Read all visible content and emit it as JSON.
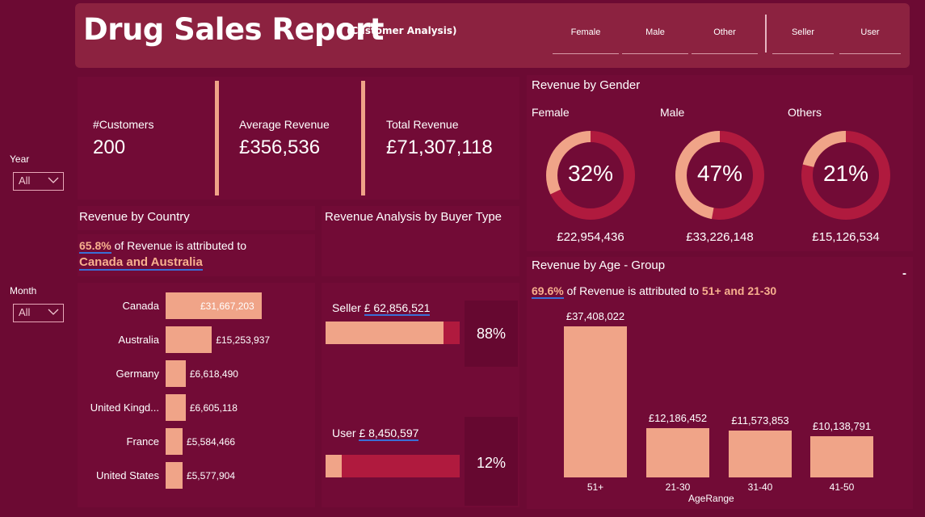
{
  "header": {
    "title": "Drug Sales Report",
    "subtitle": "(Customer Analysis)",
    "gender_buttons": [
      "Female",
      "Male",
      "Other"
    ],
    "buyer_buttons": [
      "Seller",
      "User"
    ]
  },
  "slicers": {
    "year": {
      "label": "Year",
      "value": "All"
    },
    "month": {
      "label": "Month",
      "value": "All"
    }
  },
  "kpis": [
    {
      "label": "#Customers",
      "value": "200"
    },
    {
      "label": "Average Revenue",
      "value": "£356,536"
    },
    {
      "label": "Total Revenue",
      "value": "£71,307,118"
    }
  ],
  "country": {
    "title": "Revenue by Country",
    "pct": "65.8%",
    "text": " of Revenue is attributed to",
    "highlight": "Canada and Australia",
    "chart_data": {
      "type": "bar",
      "orientation": "horizontal",
      "categories": [
        "Canada",
        "Australia",
        "Germany",
        "United Kingd...",
        "France",
        "United States"
      ],
      "values": [
        31667203,
        15253937,
        6618490,
        6605118,
        5584466,
        5577904
      ],
      "labels": [
        "£31,667,203",
        "£15,253,937",
        "£6,618,490",
        "£6,605,118",
        "£5,584,466",
        "£5,577,904"
      ]
    }
  },
  "buyer": {
    "title": "Revenue Analysis by Buyer Type",
    "items": [
      {
        "label": "Seller",
        "amount": "£ 62,856,521",
        "share": 0.88,
        "pct": "88%"
      },
      {
        "label": "User",
        "amount": "£ 8,450,597",
        "share": 0.12,
        "pct": "12%"
      }
    ]
  },
  "gender": {
    "title": "Revenue by Gender",
    "items": [
      {
        "label": "Female",
        "pct_text": "32%",
        "share": 0.32,
        "amount": "£22,954,436"
      },
      {
        "label": "Male",
        "pct_text": "47%",
        "share": 0.47,
        "amount": "£33,226,148"
      },
      {
        "label": "Others",
        "pct_text": "21%",
        "share": 0.21,
        "amount": "£15,126,534"
      }
    ]
  },
  "age": {
    "title": "Revenue by Age - Group",
    "pct": "69.6%",
    "text": " of Revenue is attributed to ",
    "highlight": "51+ and 21-30",
    "dash": "-",
    "chart_data": {
      "type": "bar",
      "xlabel": "AgeRange",
      "categories": [
        "51+",
        "21-30",
        "31-40",
        "41-50"
      ],
      "values": [
        37408022,
        12186452,
        11573853,
        10138791
      ],
      "labels": [
        "£37,408,022",
        "£12,186,452",
        "£11,573,853",
        "£10,138,791"
      ]
    }
  },
  "colors": {
    "background": "#6c0a33",
    "bar": "#f0a488",
    "accent_red": "#b01a3e",
    "header": "#8c2240"
  }
}
